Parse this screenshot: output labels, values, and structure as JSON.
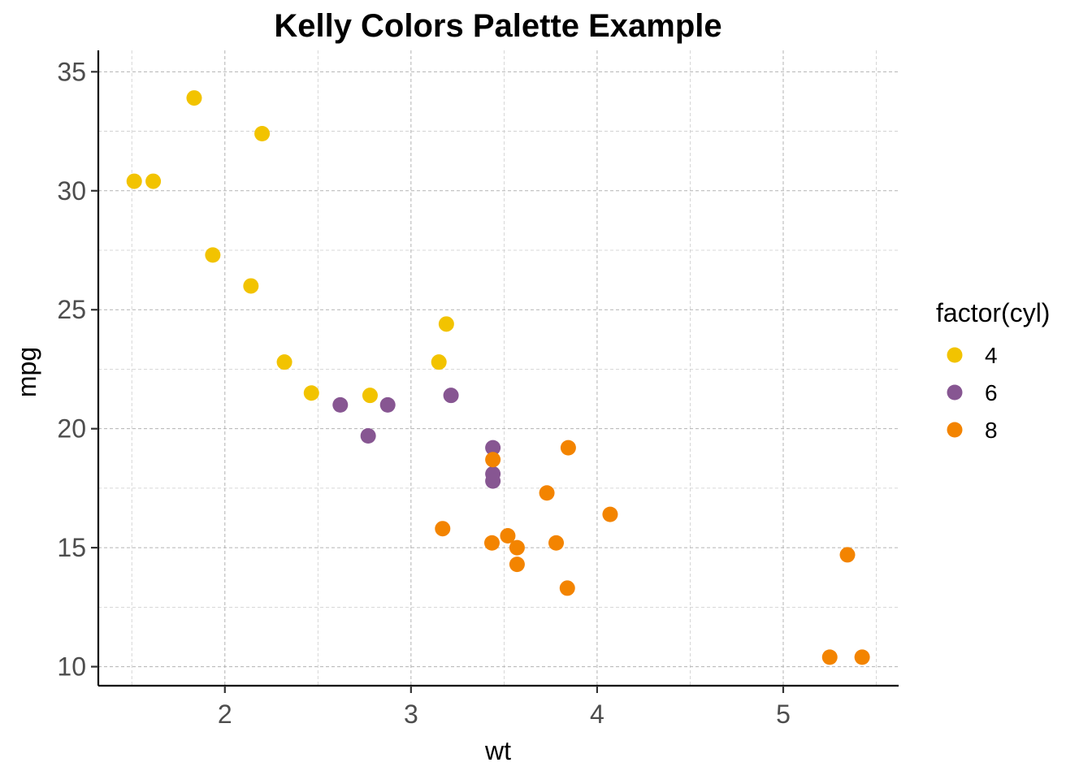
{
  "chart_data": {
    "type": "scatter",
    "title": "Kelly Colors Palette Example",
    "xlabel": "wt",
    "ylabel": "mpg",
    "xlim": [
      1.32,
      5.62
    ],
    "ylim": [
      9.2,
      35.9
    ],
    "x_ticks": [
      2,
      3,
      4,
      5
    ],
    "x_tick_labels": [
      "2",
      "3",
      "4",
      "5"
    ],
    "x_minor_ticks": [
      1.5,
      2.5,
      3.5,
      4.5,
      5.5
    ],
    "y_ticks": [
      10,
      15,
      20,
      25,
      30,
      35
    ],
    "y_tick_labels": [
      "10",
      "15",
      "20",
      "25",
      "30",
      "35"
    ],
    "y_minor_ticks": [
      12.5,
      17.5,
      22.5,
      27.5,
      32.5
    ],
    "grid": true,
    "legend": {
      "title": "factor(cyl)",
      "position": "right"
    },
    "series": [
      {
        "name": "4",
        "color": "#F2C300",
        "points": [
          [
            2.32,
            22.8
          ],
          [
            3.19,
            24.4
          ],
          [
            3.15,
            22.8
          ],
          [
            2.2,
            32.4
          ],
          [
            1.615,
            30.4
          ],
          [
            1.835,
            33.9
          ],
          [
            2.465,
            21.5
          ],
          [
            1.935,
            27.3
          ],
          [
            2.14,
            26.0
          ],
          [
            1.513,
            30.4
          ],
          [
            2.78,
            21.4
          ]
        ]
      },
      {
        "name": "6",
        "color": "#875692",
        "points": [
          [
            2.62,
            21.0
          ],
          [
            2.875,
            21.0
          ],
          [
            3.215,
            21.4
          ],
          [
            3.44,
            18.1
          ],
          [
            3.44,
            19.2
          ],
          [
            3.44,
            17.8
          ],
          [
            2.77,
            19.7
          ]
        ]
      },
      {
        "name": "8",
        "color": "#F38400",
        "points": [
          [
            3.44,
            18.7
          ],
          [
            3.57,
            14.3
          ],
          [
            4.07,
            16.4
          ],
          [
            3.73,
            17.3
          ],
          [
            3.78,
            15.2
          ],
          [
            5.25,
            10.4
          ],
          [
            5.424,
            10.4
          ],
          [
            5.345,
            14.7
          ],
          [
            3.52,
            15.5
          ],
          [
            3.435,
            15.2
          ],
          [
            3.84,
            13.3
          ],
          [
            3.845,
            19.2
          ],
          [
            3.17,
            15.8
          ],
          [
            3.57,
            15.0
          ]
        ]
      }
    ]
  }
}
